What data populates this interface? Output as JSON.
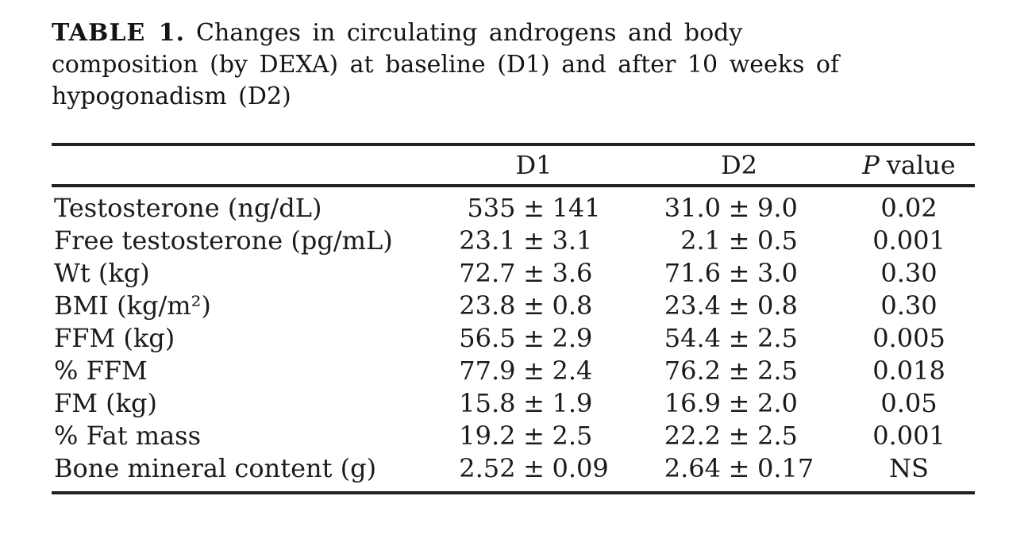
{
  "colors": {
    "background": "#ffffff",
    "text": "#1b1b1b",
    "rule": "#202020"
  },
  "caption": {
    "label": "TABLE 1.",
    "line1": "Changes in circulating androgens and body",
    "line2": "composition (by DEXA) at baseline (D1) and after 10 weeks of",
    "line3": "hypogonadism (D2)"
  },
  "table": {
    "pm": "±",
    "header": {
      "rowhead": "",
      "d1": "D1",
      "d2": "D2",
      "p_italic": "P",
      "p_rest": "value"
    },
    "rows": [
      {
        "label": "Testosterone (ng/dL)",
        "d1_mean": "535",
        "d1_sd": "141",
        "d2_mean": "31.0",
        "d2_sd": "9.0",
        "p": "0.02"
      },
      {
        "label": "Free testosterone (pg/mL)",
        "d1_mean": "23.1",
        "d1_sd": "3.1",
        "d2_mean": "2.1",
        "d2_sd": "0.5",
        "p": "0.001"
      },
      {
        "label": "Wt (kg)",
        "d1_mean": "72.7",
        "d1_sd": "3.6",
        "d2_mean": "71.6",
        "d2_sd": "3.0",
        "p": "0.30"
      },
      {
        "label": "BMI (kg/m²)",
        "d1_mean": "23.8",
        "d1_sd": "0.8",
        "d2_mean": "23.4",
        "d2_sd": "0.8",
        "p": "0.30"
      },
      {
        "label": "FFM (kg)",
        "d1_mean": "56.5",
        "d1_sd": "2.9",
        "d2_mean": "54.4",
        "d2_sd": "2.5",
        "p": "0.005"
      },
      {
        "label": "% FFM",
        "d1_mean": "77.9",
        "d1_sd": "2.4",
        "d2_mean": "76.2",
        "d2_sd": "2.5",
        "p": "0.018"
      },
      {
        "label": "FM (kg)",
        "d1_mean": "15.8",
        "d1_sd": "1.9",
        "d2_mean": "16.9",
        "d2_sd": "2.0",
        "p": "0.05"
      },
      {
        "label": "% Fat mass",
        "d1_mean": "19.2",
        "d1_sd": "2.5",
        "d2_mean": "22.2",
        "d2_sd": "2.5",
        "p": "0.001"
      },
      {
        "label": "Bone mineral content (g)",
        "d1_mean": "2.52",
        "d1_sd": "0.09",
        "d2_mean": "2.64",
        "d2_sd": "0.17",
        "p": "NS"
      }
    ]
  }
}
